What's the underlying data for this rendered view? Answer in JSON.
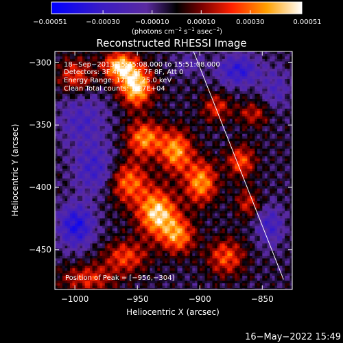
{
  "chart_data": {
    "type": "heatmap",
    "title": "Reconstructed RHESSI Image",
    "xlabel": "Heliocentric X (arcsec)",
    "ylabel": "Heliocentric Y (arcsec)",
    "xlim": [
      -1016,
      -826
    ],
    "ylim": [
      -482,
      -291
    ],
    "x_ticks": [
      -1000,
      -950,
      -900,
      -850
    ],
    "y_ticks": [
      -300,
      -350,
      -400,
      -450
    ],
    "x_tick_labels": [
      "−1000",
      "−950",
      "−900",
      "−850"
    ],
    "y_tick_labels": [
      "−300",
      "−350",
      "−400",
      "−450"
    ],
    "colorbar": {
      "range": [
        -0.00051,
        0.00051
      ],
      "ticks": [
        -0.00051,
        -0.0003,
        -0.0001,
        0.0001,
        0.0003,
        0.00051
      ],
      "tick_labels": [
        "−0.00051",
        "−0.00030",
        "−0.00010",
        "0.00010",
        "0.00030",
        "0.00051"
      ],
      "unit_prefix": "(photons cm",
      "unit_sup1": "−2",
      "unit_mid": " s",
      "unit_sup2": "−1",
      "unit_mid2": " asec",
      "unit_sup3": "−2",
      "unit_suffix": ")"
    },
    "annotations": {
      "line1": "18−Sep−2013 15:45:08.000 to 15:51:08.000",
      "line2": "Detectors: 3F 4F 5F 6F 7F 8F, Att 0",
      "line3": "Energy Range: 12.0 − 25.0 keV",
      "line4": "Clean     Total counts: 1.27E+04",
      "peak": "Position of Peak = [−956,−304]"
    },
    "limb_line": {
      "x": [
        -905,
        -833
      ],
      "y": [
        -291,
        -474
      ]
    },
    "peak": {
      "x": -956,
      "y": -304
    },
    "blobs": [
      {
        "x": -935,
        "y": -420,
        "amp": 0.0005,
        "sx": 11,
        "sy": 13
      },
      {
        "x": -952,
        "y": -318,
        "amp": 0.00052,
        "sx": 9,
        "sy": 11
      },
      {
        "x": -965,
        "y": -302,
        "amp": 0.00048,
        "sx": 9,
        "sy": 8
      },
      {
        "x": -920,
        "y": -370,
        "amp": 0.0004,
        "sx": 9,
        "sy": 12
      },
      {
        "x": -945,
        "y": -360,
        "amp": 0.00038,
        "sx": 10,
        "sy": 10
      },
      {
        "x": -900,
        "y": -395,
        "amp": 0.0004,
        "sx": 9,
        "sy": 12
      },
      {
        "x": -958,
        "y": -395,
        "amp": 0.00034,
        "sx": 11,
        "sy": 12
      },
      {
        "x": -918,
        "y": -438,
        "amp": 0.00036,
        "sx": 9,
        "sy": 10
      },
      {
        "x": -960,
        "y": -455,
        "amp": 0.00028,
        "sx": 12,
        "sy": 9
      },
      {
        "x": -990,
        "y": -472,
        "amp": 0.00024,
        "sx": 15,
        "sy": 8
      },
      {
        "x": -880,
        "y": -455,
        "amp": 0.0003,
        "sx": 10,
        "sy": 10
      },
      {
        "x": -868,
        "y": -378,
        "amp": 0.0003,
        "sx": 8,
        "sy": 9
      },
      {
        "x": -862,
        "y": -412,
        "amp": 0.00022,
        "sx": 7,
        "sy": 8
      },
      {
        "x": -858,
        "y": -340,
        "amp": 0.0002,
        "sx": 9,
        "sy": 7
      },
      {
        "x": -888,
        "y": -335,
        "amp": 0.00024,
        "sx": 8,
        "sy": 8
      },
      {
        "x": -1000,
        "y": -310,
        "amp": 0.00026,
        "sx": 10,
        "sy": 10
      },
      {
        "x": -995,
        "y": -345,
        "amp": -0.0002,
        "sx": 14,
        "sy": 16
      },
      {
        "x": -1000,
        "y": -430,
        "amp": -0.00036,
        "sx": 10,
        "sy": 12
      },
      {
        "x": -985,
        "y": -385,
        "amp": -0.00024,
        "sx": 12,
        "sy": 14
      },
      {
        "x": -870,
        "y": -305,
        "amp": -0.0003,
        "sx": 12,
        "sy": 9
      },
      {
        "x": -845,
        "y": -430,
        "amp": -0.00022,
        "sx": 8,
        "sy": 12
      },
      {
        "x": -840,
        "y": -320,
        "amp": -0.00016,
        "sx": 8,
        "sy": 12
      },
      {
        "x": -910,
        "y": -300,
        "amp": -0.00012,
        "sx": 8,
        "sy": 7
      }
    ],
    "grid": false
  },
  "footer": {
    "timestamp": "16−May−2022 15:49"
  }
}
